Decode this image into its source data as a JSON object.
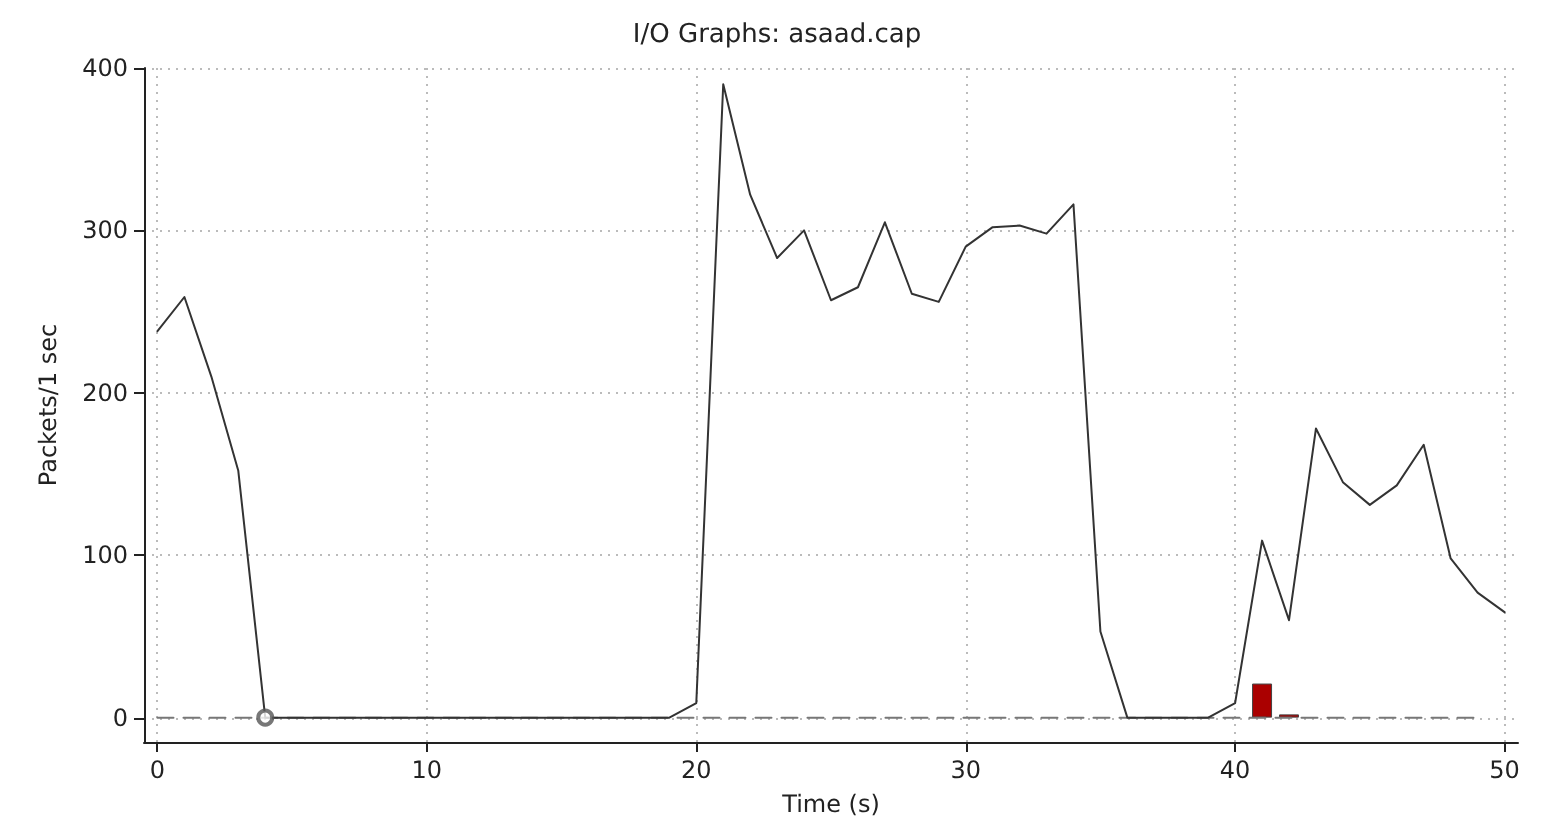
{
  "chart_data": {
    "type": "line",
    "title": "I/O Graphs: asaad.cap",
    "xlabel": "Time (s)",
    "ylabel": "Packets/1 sec",
    "x": [
      0,
      1,
      2,
      3,
      4,
      5,
      6,
      7,
      8,
      9,
      10,
      11,
      12,
      13,
      14,
      15,
      16,
      17,
      18,
      19,
      20,
      21,
      22,
      23,
      24,
      25,
      26,
      27,
      28,
      29,
      30,
      31,
      32,
      33,
      34,
      35,
      36,
      37,
      38,
      39,
      40,
      41,
      42,
      43,
      44,
      45,
      46,
      47,
      48,
      49,
      50
    ],
    "series": [
      {
        "color": "#333333",
        "line_style": "solid",
        "marker": "none",
        "values": [
          238,
          259,
          210,
          152,
          0,
          0,
          0,
          0,
          0,
          0,
          0,
          0,
          0,
          0,
          0,
          0,
          0,
          0,
          0,
          0,
          9,
          390,
          322,
          283,
          300,
          257,
          265,
          305,
          261,
          256,
          290,
          302,
          303,
          298,
          316,
          53,
          0,
          0,
          0,
          0,
          9,
          109,
          60,
          178,
          145,
          131,
          143,
          168,
          98,
          77,
          65
        ]
      },
      {
        "color": "#777777",
        "line_style": "dashed",
        "marker": "none",
        "x": [
          0,
          1,
          2,
          3,
          4,
          5,
          6,
          7,
          8,
          9,
          10,
          11,
          12,
          13,
          14,
          15,
          16,
          17,
          18,
          19,
          20,
          21,
          22,
          23,
          24,
          25,
          26,
          27,
          28,
          29,
          30,
          31,
          32,
          33,
          34,
          35,
          36,
          37,
          38,
          39,
          40,
          41,
          42,
          43,
          44,
          45,
          46,
          47,
          48,
          49
        ],
        "values": [
          0,
          0,
          0,
          0,
          0,
          0,
          0,
          0,
          0,
          0,
          0,
          0,
          0,
          0,
          0,
          0,
          0,
          0,
          0,
          0,
          0,
          0,
          0,
          0,
          0,
          0,
          0,
          0,
          0,
          0,
          0,
          0,
          0,
          0,
          0,
          0,
          0,
          0,
          0,
          0,
          0,
          0,
          0,
          0,
          0,
          0,
          0,
          0,
          0,
          0
        ]
      },
      {
        "type": "bar",
        "color": "#aa0000",
        "x": [
          41,
          42
        ],
        "values": [
          21,
          2
        ]
      },
      {
        "type": "scatter",
        "color": "#555555",
        "marker": "circle",
        "x": [
          4
        ],
        "values": [
          0
        ]
      }
    ],
    "xlim": [
      -0.5,
      50.5
    ],
    "xticks": [
      0,
      10,
      20,
      30,
      40,
      50
    ],
    "ylim": [
      -15,
      400
    ],
    "yticks": [
      0,
      100,
      200,
      300,
      400
    ],
    "grid": true
  }
}
